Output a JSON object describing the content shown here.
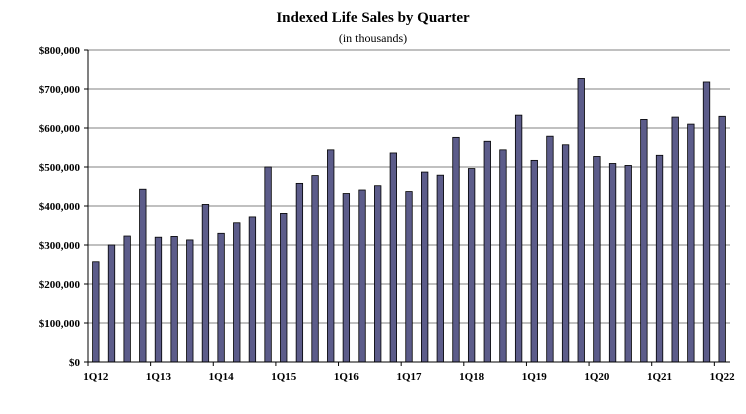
{
  "chart_data": {
    "type": "bar",
    "title": "Indexed Life Sales by Quarter",
    "subtitle": "(in thousands)",
    "xlabel": "",
    "ylabel": "",
    "ylim": [
      0,
      800000
    ],
    "yticks": [
      0,
      100000,
      200000,
      300000,
      400000,
      500000,
      600000,
      700000,
      800000
    ],
    "ytick_labels": [
      "$0",
      "$100,000",
      "$200,000",
      "$300,000",
      "$400,000",
      "$500,000",
      "$600,000",
      "$700,000",
      "$800,000"
    ],
    "grid": true,
    "bar_color": "#5c5c8a",
    "categories": [
      "1Q12",
      "2Q12",
      "3Q12",
      "4Q12",
      "1Q13",
      "2Q13",
      "3Q13",
      "4Q13",
      "1Q14",
      "2Q14",
      "3Q14",
      "4Q14",
      "1Q15",
      "2Q15",
      "3Q15",
      "4Q15",
      "1Q16",
      "2Q16",
      "3Q16",
      "4Q16",
      "1Q17",
      "2Q17",
      "3Q17",
      "4Q17",
      "1Q18",
      "2Q18",
      "3Q18",
      "4Q18",
      "1Q19",
      "2Q19",
      "3Q19",
      "4Q19",
      "1Q20",
      "2Q20",
      "3Q20",
      "4Q20",
      "1Q21",
      "2Q21",
      "3Q21",
      "4Q21",
      "1Q22"
    ],
    "visible_tick_labels": [
      "1Q12",
      "1Q13",
      "1Q14",
      "1Q15",
      "1Q16",
      "1Q17",
      "1Q18",
      "1Q19",
      "1Q20",
      "1Q21",
      "1Q22"
    ],
    "values": [
      257000,
      300000,
      323000,
      443000,
      320000,
      322000,
      313000,
      404000,
      330000,
      357000,
      372000,
      500000,
      381000,
      458000,
      478000,
      544000,
      432000,
      441000,
      452000,
      536000,
      437000,
      487000,
      479000,
      576000,
      496000,
      566000,
      544000,
      633000,
      517000,
      579000,
      557000,
      727000,
      527000,
      509000,
      504000,
      622000,
      530000,
      628000,
      610000,
      718000,
      630000
    ]
  }
}
